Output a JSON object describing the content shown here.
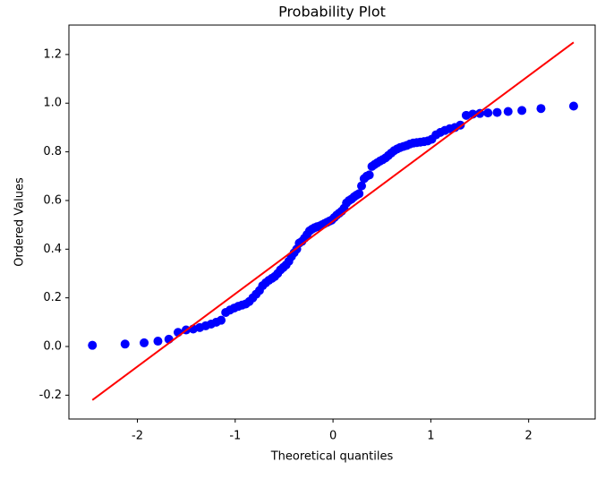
{
  "chart_data": {
    "type": "scatter",
    "title": "Probability Plot",
    "x_label": "Theoretical quantiles",
    "y_label": "Ordered Values",
    "xlim": [
      -2.7,
      2.68
    ],
    "ylim": [
      -0.298,
      1.321
    ],
    "xticks": [
      -2,
      -1,
      0,
      1,
      2
    ],
    "yticks": [
      -0.2,
      {
        "value": 0,
        "label": "0.0"
      },
      0.2,
      0.4,
      0.6,
      0.8,
      {
        "value": 1,
        "label": "1.0"
      },
      1.2
    ],
    "series": [
      {
        "type": "scatter",
        "color": "#0000ff",
        "x": [
          -2.46,
          -2.126,
          -1.931,
          -1.79,
          -1.678,
          -1.584,
          -1.502,
          -1.429,
          -1.362,
          -1.302,
          -1.246,
          -1.193,
          -1.144,
          -1.097,
          -1.053,
          -1.01,
          -0.969,
          -0.93,
          -0.892,
          -0.856,
          -0.82,
          -0.786,
          -0.752,
          -0.72,
          -0.687,
          -0.656,
          -0.625,
          -0.595,
          -0.566,
          -0.537,
          -0.508,
          -0.48,
          -0.452,
          -0.425,
          -0.398,
          -0.371,
          -0.345,
          -0.318,
          -0.292,
          -0.266,
          -0.24,
          -0.215,
          -0.189,
          -0.164,
          -0.138,
          -0.113,
          -0.088,
          -0.063,
          -0.038,
          -0.013,
          0.013,
          0.038,
          0.063,
          0.088,
          0.113,
          0.138,
          0.164,
          0.189,
          0.215,
          0.24,
          0.266,
          0.292,
          0.318,
          0.345,
          0.371,
          0.398,
          0.425,
          0.452,
          0.48,
          0.508,
          0.537,
          0.566,
          0.595,
          0.625,
          0.656,
          0.687,
          0.72,
          0.752,
          0.786,
          0.82,
          0.856,
          0.892,
          0.93,
          0.969,
          1.01,
          1.053,
          1.097,
          1.144,
          1.193,
          1.246,
          1.302,
          1.362,
          1.429,
          1.502,
          1.584,
          1.678,
          1.79,
          1.931,
          2.126,
          2.46
        ],
        "values": [
          0.005,
          0.01,
          0.015,
          0.022,
          0.03,
          0.058,
          0.068,
          0.072,
          0.078,
          0.085,
          0.092,
          0.1,
          0.108,
          0.14,
          0.15,
          0.158,
          0.165,
          0.17,
          0.175,
          0.185,
          0.2,
          0.215,
          0.23,
          0.25,
          0.262,
          0.272,
          0.28,
          0.288,
          0.3,
          0.315,
          0.325,
          0.335,
          0.35,
          0.37,
          0.385,
          0.4,
          0.425,
          0.432,
          0.445,
          0.46,
          0.475,
          0.482,
          0.488,
          0.492,
          0.495,
          0.5,
          0.505,
          0.51,
          0.515,
          0.52,
          0.53,
          0.54,
          0.548,
          0.556,
          0.568,
          0.59,
          0.6,
          0.606,
          0.615,
          0.622,
          0.628,
          0.66,
          0.69,
          0.7,
          0.705,
          0.74,
          0.748,
          0.755,
          0.762,
          0.768,
          0.775,
          0.785,
          0.795,
          0.805,
          0.812,
          0.818,
          0.822,
          0.826,
          0.832,
          0.836,
          0.838,
          0.84,
          0.842,
          0.845,
          0.852,
          0.87,
          0.88,
          0.888,
          0.895,
          0.9,
          0.91,
          0.95,
          0.955,
          0.958,
          0.96,
          0.962,
          0.966,
          0.97,
          0.978,
          0.988
        ]
      },
      {
        "type": "line",
        "color": "#ff0000",
        "x": [
          -2.46,
          2.46
        ],
        "values": [
          -0.22,
          1.25
        ]
      }
    ]
  }
}
